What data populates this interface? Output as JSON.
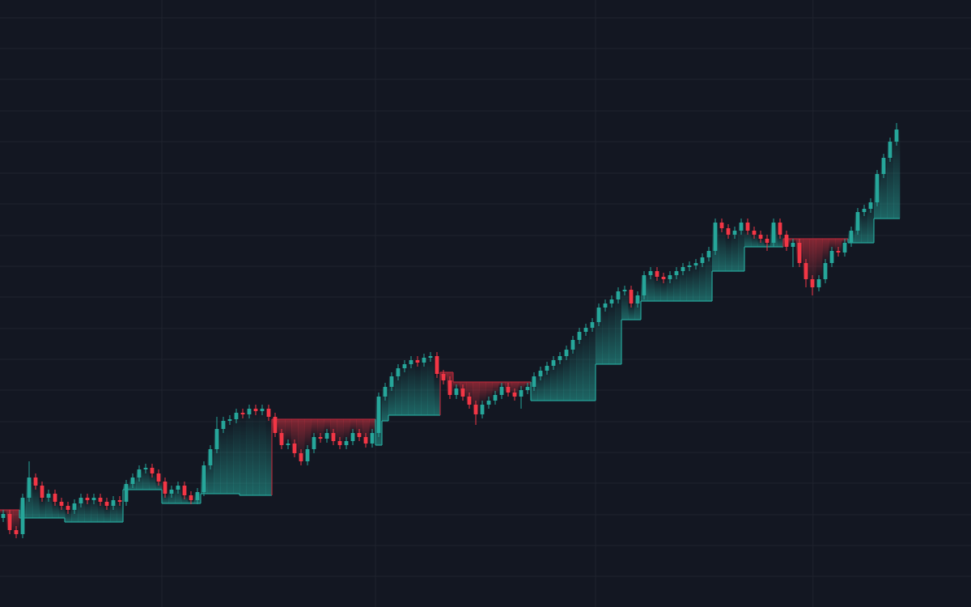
{
  "chart_data": {
    "type": "candlestick",
    "open": [
      110,
      115,
      95,
      90,
      135,
      160,
      150,
      135,
      140,
      130,
      125,
      120,
      128,
      135,
      132,
      135,
      130,
      125,
      132,
      130,
      152,
      160,
      170,
      172,
      165,
      155,
      140,
      145,
      150,
      138,
      132,
      142,
      175,
      195,
      220,
      230,
      232,
      240,
      238,
      245,
      242,
      245,
      235,
      215,
      200,
      202,
      190,
      180,
      195,
      210,
      208,
      215,
      205,
      200,
      205,
      215,
      210,
      202,
      215,
      260,
      272,
      285,
      295,
      300,
      305,
      302,
      308,
      310,
      288,
      280,
      262,
      270,
      260,
      250,
      238,
      250,
      255,
      262,
      272,
      265,
      260,
      268,
      272,
      285,
      292,
      298,
      305,
      310,
      318,
      330,
      340,
      345,
      352,
      370,
      375,
      380,
      390,
      392,
      375,
      385,
      410,
      415,
      408,
      405,
      410,
      415,
      420,
      422,
      425,
      432,
      440,
      475,
      468,
      460,
      465,
      475,
      465,
      460,
      455,
      450,
      475,
      460,
      445,
      450,
      425,
      405,
      395,
      405,
      425,
      440,
      438,
      450,
      465,
      488,
      492,
      500,
      535,
      555,
      575
    ],
    "high": [
      120,
      120,
      100,
      140,
      180,
      165,
      155,
      145,
      145,
      135,
      130,
      133,
      140,
      140,
      140,
      140,
      135,
      137,
      137,
      157,
      165,
      175,
      177,
      177,
      170,
      160,
      150,
      155,
      155,
      143,
      147,
      180,
      200,
      235,
      235,
      237,
      245,
      245,
      250,
      250,
      250,
      250,
      240,
      220,
      207,
      207,
      195,
      200,
      215,
      215,
      220,
      220,
      210,
      210,
      220,
      220,
      215,
      220,
      265,
      277,
      290,
      300,
      305,
      310,
      310,
      313,
      315,
      315,
      293,
      285,
      275,
      275,
      265,
      255,
      255,
      260,
      267,
      277,
      277,
      270,
      273,
      277,
      290,
      297,
      303,
      310,
      315,
      323,
      335,
      345,
      350,
      357,
      375,
      380,
      385,
      395,
      397,
      397,
      390,
      415,
      420,
      420,
      413,
      415,
      420,
      425,
      427,
      430,
      437,
      445,
      480,
      480,
      473,
      470,
      480,
      480,
      470,
      465,
      460,
      480,
      480,
      465,
      455,
      455,
      430,
      410,
      410,
      430,
      445,
      445,
      455,
      470,
      493,
      497,
      505,
      540,
      560,
      580,
      598
    ],
    "low": [
      105,
      90,
      85,
      85,
      130,
      145,
      130,
      130,
      125,
      120,
      115,
      115,
      123,
      127,
      127,
      125,
      120,
      120,
      125,
      125,
      147,
      155,
      165,
      160,
      150,
      135,
      135,
      140,
      133,
      127,
      127,
      137,
      170,
      190,
      215,
      225,
      227,
      233,
      233,
      237,
      237,
      230,
      210,
      195,
      195,
      185,
      175,
      175,
      190,
      203,
      203,
      200,
      195,
      195,
      200,
      205,
      197,
      197,
      210,
      255,
      267,
      280,
      290,
      295,
      297,
      297,
      303,
      283,
      275,
      257,
      257,
      255,
      245,
      225,
      233,
      245,
      250,
      257,
      260,
      255,
      245,
      263,
      267,
      280,
      287,
      293,
      300,
      305,
      313,
      325,
      335,
      340,
      347,
      365,
      370,
      375,
      385,
      370,
      370,
      380,
      405,
      403,
      400,
      400,
      405,
      410,
      415,
      417,
      420,
      427,
      435,
      463,
      455,
      455,
      460,
      460,
      455,
      450,
      440,
      445,
      455,
      440,
      420,
      420,
      395,
      385,
      390,
      400,
      420,
      433,
      433,
      445,
      460,
      483,
      487,
      495,
      530,
      550,
      570
    ],
    "close": [
      115,
      95,
      90,
      135,
      160,
      150,
      135,
      140,
      130,
      125,
      120,
      128,
      135,
      132,
      135,
      130,
      125,
      132,
      130,
      152,
      160,
      170,
      172,
      165,
      155,
      140,
      145,
      150,
      138,
      132,
      142,
      175,
      195,
      220,
      230,
      232,
      240,
      238,
      245,
      242,
      245,
      235,
      215,
      200,
      202,
      190,
      180,
      195,
      210,
      208,
      215,
      205,
      200,
      205,
      215,
      210,
      202,
      215,
      260,
      272,
      285,
      295,
      300,
      305,
      302,
      308,
      310,
      288,
      280,
      262,
      270,
      260,
      250,
      238,
      250,
      255,
      262,
      272,
      265,
      260,
      268,
      272,
      285,
      292,
      298,
      305,
      310,
      318,
      330,
      340,
      345,
      352,
      370,
      375,
      380,
      390,
      392,
      375,
      385,
      410,
      415,
      408,
      405,
      410,
      415,
      420,
      422,
      425,
      432,
      440,
      475,
      468,
      460,
      465,
      475,
      465,
      460,
      455,
      450,
      475,
      460,
      445,
      450,
      425,
      405,
      395,
      405,
      425,
      440,
      438,
      450,
      465,
      488,
      492,
      500,
      535,
      555,
      575,
      590
    ],
    "stop": [
      120,
      120,
      120,
      110,
      110,
      110,
      110,
      110,
      110,
      110,
      105,
      105,
      105,
      105,
      105,
      105,
      105,
      105,
      105,
      145,
      145,
      145,
      145,
      145,
      145,
      128,
      128,
      128,
      128,
      128,
      128,
      140,
      140,
      140,
      140,
      140,
      140,
      138,
      138,
      138,
      138,
      138,
      232,
      232,
      232,
      232,
      232,
      232,
      232,
      232,
      232,
      232,
      232,
      232,
      232,
      232,
      232,
      232,
      200,
      230,
      237,
      237,
      237,
      237,
      237,
      237,
      237,
      237,
      290,
      290,
      278,
      278,
      278,
      278,
      278,
      278,
      278,
      278,
      278,
      278,
      278,
      278,
      255,
      255,
      255,
      255,
      255,
      255,
      255,
      255,
      255,
      255,
      300,
      300,
      300,
      300,
      355,
      355,
      355,
      378,
      378,
      378,
      378,
      378,
      378,
      378,
      378,
      378,
      378,
      378,
      415,
      415,
      415,
      415,
      415,
      445,
      445,
      445,
      445,
      445,
      445,
      455,
      455,
      455,
      455,
      455,
      455,
      455,
      455,
      455,
      455,
      450,
      450,
      450,
      450,
      480,
      480,
      480,
      480
    ],
    "up_color": "#26a69a",
    "down_color": "#f23645",
    "stop_up_color": "#26a69a",
    "stop_down_color": "#b2283a",
    "xlim": [
      0,
      150
    ],
    "ylim": [
      0,
      750
    ],
    "xticks": [
      25,
      58,
      92,
      125.6
    ],
    "yticks": [
      38,
      76,
      114,
      153,
      191,
      229,
      268,
      306,
      344,
      383,
      421,
      459,
      498,
      536,
      575,
      613,
      652,
      690,
      728
    ],
    "grid": true
  }
}
